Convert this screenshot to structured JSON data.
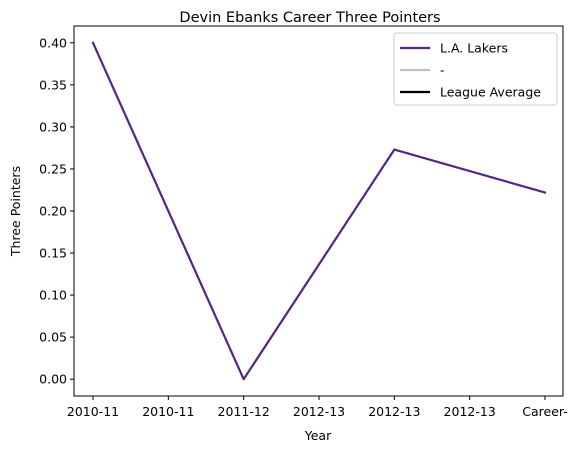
{
  "chart_data": {
    "type": "line",
    "title": "Devin Ebanks Career Three Pointers",
    "xlabel": "Year",
    "ylabel": "Three Pointers",
    "categories": [
      "2010-11",
      "2010-11",
      "2011-12",
      "2012-13",
      "2012-13",
      "2012-13",
      "Career-"
    ],
    "y_ticks": [
      "0.00",
      "0.05",
      "0.10",
      "0.15",
      "0.20",
      "0.25",
      "0.30",
      "0.35",
      "0.40"
    ],
    "ylim": [
      -0.02,
      0.42
    ],
    "grid": false,
    "legend_position": "top-right",
    "series": [
      {
        "name": "L.A. Lakers",
        "color": "#552583",
        "points": [
          {
            "x": 0,
            "y": 0.4
          },
          {
            "x": 2,
            "y": 0.0
          },
          {
            "x": 4,
            "y": 0.273
          },
          {
            "x": 6,
            "y": 0.222
          }
        ]
      },
      {
        "name": "-",
        "color": "#c0c0c0",
        "points": []
      },
      {
        "name": "League Average",
        "color": "#000000",
        "points": []
      }
    ]
  }
}
